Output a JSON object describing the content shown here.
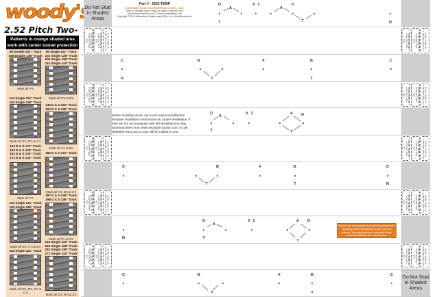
{
  "brand": {
    "logo": "woody's",
    "title": "2.52 Pitch Two-Ply",
    "banner": "Patterns in orange shaded area work with center tunnel protection",
    "accent": "#e8892a"
  },
  "patterns": {
    "left": [
      {
        "header": "96 Double 121\" Track\n108 Double 136\" Track",
        "caption": "Mark all A's"
      },
      {
        "header": "144 Single 121\" Track\n162 Single 136\" Track",
        "caption": "Mark all O's, B's & C's"
      },
      {
        "header": "144 D & S 121\" Track\n153 D & S 128\" Track\n162 D & S 136\" Track\n171 D & S 144\" Track",
        "caption": "Mark all T's"
      },
      {
        "header": "120 Single 121\" Track\n135 Single 136\" Track",
        "caption": "Mark all O's, C's & Z's"
      },
      {
        "header": "192 Single 121\" Track",
        "caption": "Mark all O's, B's, X's & C's"
      }
    ],
    "right": [
      {
        "header": "96 Single 121\" Track\n102 Single 128\" Track\n108 Single 136\" Track\n114 Single 144\" Track",
        "caption": "Mark all O's & B's"
      },
      {
        "header": "144 D & S 121\" Track\n162 D & S 136\" Track",
        "caption": "Mark all A's & B's"
      },
      {
        "header": "192 D & S 121\" Track",
        "caption": "Mark all A's, B's & C's"
      },
      {
        "header": "187 D & S 128\" Track\n198 D & S 136\" Track",
        "caption": "Mark all T's & N's"
      },
      {
        "header": "144 Single 121\" Track\n153 Single 128\" Track\n162 Single 136\" Track\n171 Single 144\" Track",
        "caption": "Mark all O's, B's & X's"
      }
    ]
  },
  "template": {
    "do_not_stud": "Do Not Stud in Shaded Areas",
    "header": {
      "part": "Part # - 2525-TEMP",
      "company": "INTERNATIONAL ENGINEERING & MFG., INC.",
      "address": "6054 N. Meridian Road / Hope, MI 48628 / 989-689-4911",
      "web": "www.WoodysTraction.com / E-mail: woodys@iem.com",
      "copyright": "Copyright © 2010 International Engineering & Mfg., Inc. All rights reserved."
    },
    "notice": "Before installing studs, you must read and follow the template installation instructions for proper installation. If they are not accompanied with this template you may download them from www.WoodysTraction.com or call (989)689-4911 and a copy will be mailed to you.",
    "warning": "Review the snowmobile and track manufacturer's studding recommendations in your owner's manual. You may void your warranty if their recommendations are not followed.",
    "tabs": [
      "CUT ALONG DASHED LINE\nFOR USE WITH\n15\" WIDE TRACK",
      "CUT ALONG DASHED LINE\nFOR USE WITH\n16\" WIDE TRACK",
      "CUT FOR USE WITH\n20\" WIDE TRACK"
    ],
    "rows": [
      {
        "labels": [
          "O",
          "A",
          "X",
          "Z",
          "A",
          "O",
          "T",
          "T",
          "N"
        ]
      },
      {
        "labels": [
          "C",
          "B",
          "X",
          "B",
          "C",
          "N",
          "T",
          "T"
        ]
      },
      {
        "labels": [
          "O",
          "A",
          "X",
          "Z",
          "A",
          "O",
          "T",
          "T"
        ]
      },
      {
        "labels": [
          "C",
          "B",
          "X",
          "B",
          "C",
          "T",
          "T",
          "N"
        ]
      },
      {
        "labels": [
          "O",
          "A",
          "X",
          "Z",
          "A",
          "O",
          "N",
          "T",
          "T"
        ]
      },
      {
        "labels": [
          "C",
          "B",
          "X",
          "B",
          "C",
          "T",
          "T"
        ]
      }
    ]
  }
}
